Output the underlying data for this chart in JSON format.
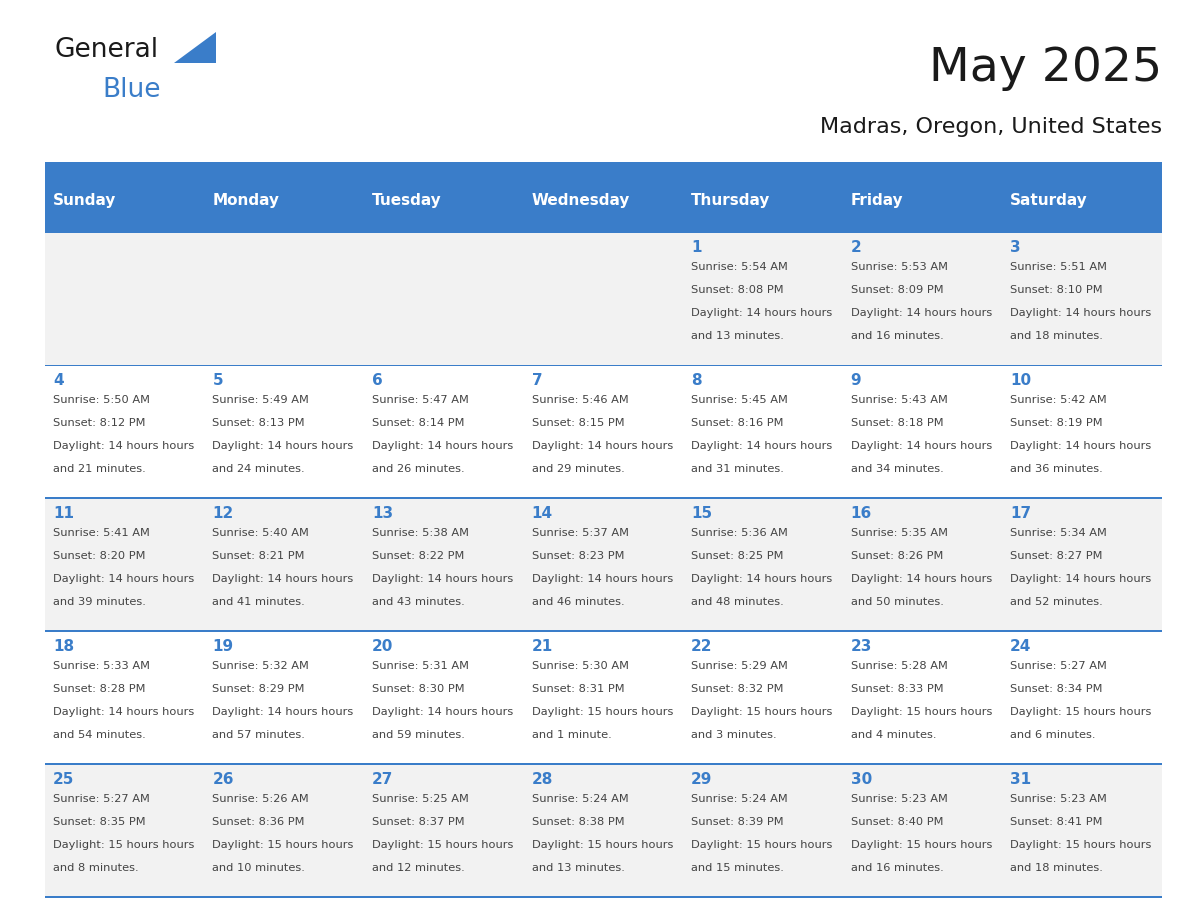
{
  "title": "May 2025",
  "subtitle": "Madras, Oregon, United States",
  "days_of_week": [
    "Sunday",
    "Monday",
    "Tuesday",
    "Wednesday",
    "Thursday",
    "Friday",
    "Saturday"
  ],
  "header_bg": "#3A7DC9",
  "header_text_color": "#FFFFFF",
  "day_number_color": "#3A7DC9",
  "info_text_color": "#444444",
  "row_bg_even": "#F2F2F2",
  "row_bg_odd": "#FFFFFF",
  "border_color": "#3A7DC9",
  "background_color": "#FFFFFF",
  "logo_general_color": "#1a1a1a",
  "logo_blue_color": "#3A7DC9",
  "logo_triangle_color": "#3A7DC9",
  "calendar_data": [
    [
      {
        "day": null,
        "sunrise": null,
        "sunset": null,
        "daylight": null
      },
      {
        "day": null,
        "sunrise": null,
        "sunset": null,
        "daylight": null
      },
      {
        "day": null,
        "sunrise": null,
        "sunset": null,
        "daylight": null
      },
      {
        "day": null,
        "sunrise": null,
        "sunset": null,
        "daylight": null
      },
      {
        "day": 1,
        "sunrise": "5:54 AM",
        "sunset": "8:08 PM",
        "daylight": "14 hours and 13 minutes."
      },
      {
        "day": 2,
        "sunrise": "5:53 AM",
        "sunset": "8:09 PM",
        "daylight": "14 hours and 16 minutes."
      },
      {
        "day": 3,
        "sunrise": "5:51 AM",
        "sunset": "8:10 PM",
        "daylight": "14 hours and 18 minutes."
      }
    ],
    [
      {
        "day": 4,
        "sunrise": "5:50 AM",
        "sunset": "8:12 PM",
        "daylight": "14 hours and 21 minutes."
      },
      {
        "day": 5,
        "sunrise": "5:49 AM",
        "sunset": "8:13 PM",
        "daylight": "14 hours and 24 minutes."
      },
      {
        "day": 6,
        "sunrise": "5:47 AM",
        "sunset": "8:14 PM",
        "daylight": "14 hours and 26 minutes."
      },
      {
        "day": 7,
        "sunrise": "5:46 AM",
        "sunset": "8:15 PM",
        "daylight": "14 hours and 29 minutes."
      },
      {
        "day": 8,
        "sunrise": "5:45 AM",
        "sunset": "8:16 PM",
        "daylight": "14 hours and 31 minutes."
      },
      {
        "day": 9,
        "sunrise": "5:43 AM",
        "sunset": "8:18 PM",
        "daylight": "14 hours and 34 minutes."
      },
      {
        "day": 10,
        "sunrise": "5:42 AM",
        "sunset": "8:19 PM",
        "daylight": "14 hours and 36 minutes."
      }
    ],
    [
      {
        "day": 11,
        "sunrise": "5:41 AM",
        "sunset": "8:20 PM",
        "daylight": "14 hours and 39 minutes."
      },
      {
        "day": 12,
        "sunrise": "5:40 AM",
        "sunset": "8:21 PM",
        "daylight": "14 hours and 41 minutes."
      },
      {
        "day": 13,
        "sunrise": "5:38 AM",
        "sunset": "8:22 PM",
        "daylight": "14 hours and 43 minutes."
      },
      {
        "day": 14,
        "sunrise": "5:37 AM",
        "sunset": "8:23 PM",
        "daylight": "14 hours and 46 minutes."
      },
      {
        "day": 15,
        "sunrise": "5:36 AM",
        "sunset": "8:25 PM",
        "daylight": "14 hours and 48 minutes."
      },
      {
        "day": 16,
        "sunrise": "5:35 AM",
        "sunset": "8:26 PM",
        "daylight": "14 hours and 50 minutes."
      },
      {
        "day": 17,
        "sunrise": "5:34 AM",
        "sunset": "8:27 PM",
        "daylight": "14 hours and 52 minutes."
      }
    ],
    [
      {
        "day": 18,
        "sunrise": "5:33 AM",
        "sunset": "8:28 PM",
        "daylight": "14 hours and 54 minutes."
      },
      {
        "day": 19,
        "sunrise": "5:32 AM",
        "sunset": "8:29 PM",
        "daylight": "14 hours and 57 minutes."
      },
      {
        "day": 20,
        "sunrise": "5:31 AM",
        "sunset": "8:30 PM",
        "daylight": "14 hours and 59 minutes."
      },
      {
        "day": 21,
        "sunrise": "5:30 AM",
        "sunset": "8:31 PM",
        "daylight": "15 hours and 1 minute."
      },
      {
        "day": 22,
        "sunrise": "5:29 AM",
        "sunset": "8:32 PM",
        "daylight": "15 hours and 3 minutes."
      },
      {
        "day": 23,
        "sunrise": "5:28 AM",
        "sunset": "8:33 PM",
        "daylight": "15 hours and 4 minutes."
      },
      {
        "day": 24,
        "sunrise": "5:27 AM",
        "sunset": "8:34 PM",
        "daylight": "15 hours and 6 minutes."
      }
    ],
    [
      {
        "day": 25,
        "sunrise": "5:27 AM",
        "sunset": "8:35 PM",
        "daylight": "15 hours and 8 minutes."
      },
      {
        "day": 26,
        "sunrise": "5:26 AM",
        "sunset": "8:36 PM",
        "daylight": "15 hours and 10 minutes."
      },
      {
        "day": 27,
        "sunrise": "5:25 AM",
        "sunset": "8:37 PM",
        "daylight": "15 hours and 12 minutes."
      },
      {
        "day": 28,
        "sunrise": "5:24 AM",
        "sunset": "8:38 PM",
        "daylight": "15 hours and 13 minutes."
      },
      {
        "day": 29,
        "sunrise": "5:24 AM",
        "sunset": "8:39 PM",
        "daylight": "15 hours and 15 minutes."
      },
      {
        "day": 30,
        "sunrise": "5:23 AM",
        "sunset": "8:40 PM",
        "daylight": "15 hours and 16 minutes."
      },
      {
        "day": 31,
        "sunrise": "5:23 AM",
        "sunset": "8:41 PM",
        "daylight": "15 hours and 18 minutes."
      }
    ]
  ],
  "header_fontsize": 11,
  "day_num_fontsize": 11,
  "info_fontsize": 8.2,
  "title_fontsize": 34,
  "subtitle_fontsize": 16
}
